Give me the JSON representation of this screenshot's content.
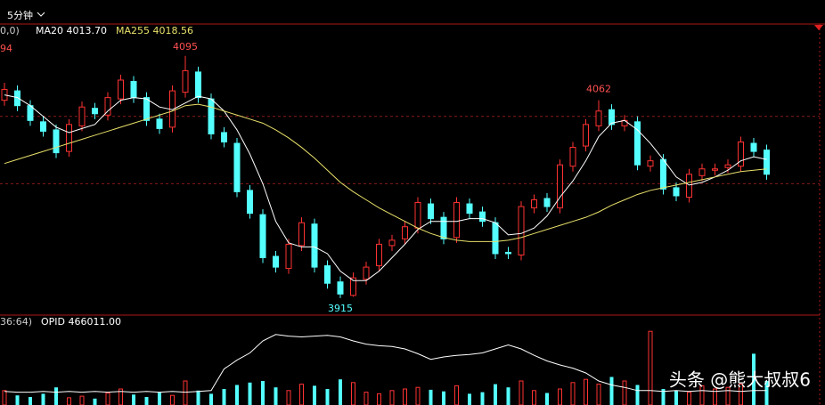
{
  "chart_data": {
    "type": "candlestick",
    "period": "5分钟",
    "left_header": "0,0)",
    "ma20_label": "MA20 4013.70",
    "ma255_label": "MA255 4018.56",
    "edge_label": "94",
    "lower_header": "36:64)",
    "opid_label": "OPID 466011.00",
    "watermark": "头条 @熊大叔叔6",
    "up_color": "#ff3232",
    "down_color": "#54ffff",
    "ylim": [
      3903,
      4118
    ],
    "gridlines": [
      4000,
      4050
    ],
    "open": [
      4062,
      4069,
      4058,
      4046,
      4040,
      4024,
      4043,
      4056,
      4051,
      4063,
      4076,
      4064,
      4048,
      4042,
      4068,
      4083,
      4063,
      4038,
      4030,
      3995,
      3977,
      3946,
      3937,
      3954,
      3970,
      3939,
      3927,
      3917,
      3929,
      3939,
      3954,
      3959,
      3967,
      3985,
      3975,
      3960,
      3985,
      3979,
      3971,
      3949,
      3947,
      3982,
      3989,
      3982,
      4013,
      4028,
      4043,
      4055,
      4043,
      4046,
      4013,
      4018,
      3997,
      3990,
      4006,
      4010,
      4012,
      4013,
      4030,
      4025
    ],
    "high": [
      4075,
      4073,
      4062,
      4050,
      4044,
      4048,
      4061,
      4060,
      4068,
      4081,
      4080,
      4068,
      4052,
      4073,
      4095,
      4087,
      4067,
      4042,
      4034,
      3999,
      3981,
      3950,
      3959,
      3975,
      3974,
      3943,
      3931,
      3934,
      3942,
      3959,
      3962,
      3972,
      3990,
      3989,
      3979,
      3990,
      3989,
      3983,
      3975,
      3953,
      3987,
      3992,
      3993,
      4018,
      4031,
      4048,
      4062,
      4059,
      4051,
      4050,
      4021,
      4022,
      4001,
      4011,
      4015,
      4015,
      4018,
      4035,
      4034,
      4029
    ],
    "low": [
      4058,
      4054,
      4043,
      4035,
      4019,
      4020,
      4039,
      4048,
      4047,
      4059,
      4060,
      4043,
      4037,
      4038,
      4064,
      4060,
      4033,
      4027,
      3990,
      3974,
      3941,
      3934,
      3933,
      3950,
      3934,
      3922,
      3915,
      3916,
      3925,
      3935,
      3950,
      3955,
      3963,
      3970,
      3955,
      3956,
      3974,
      3968,
      3944,
      3944,
      3943,
      3978,
      3979,
      3978,
      4009,
      4024,
      4039,
      4040,
      4039,
      4010,
      4009,
      3992,
      3987,
      3986,
      4002,
      4006,
      4008,
      4009,
      4020,
      4003
    ],
    "close": [
      4070,
      4058,
      4047,
      4039,
      4023,
      4044,
      4057,
      4052,
      4064,
      4077,
      4064,
      4047,
      4041,
      4069,
      4084,
      4064,
      4037,
      4031,
      3994,
      3978,
      3945,
      3938,
      3955,
      3971,
      3938,
      3926,
      3918,
      3930,
      3938,
      3955,
      3958,
      3968,
      3986,
      3974,
      3959,
      3986,
      3978,
      3972,
      3948,
      3948,
      3983,
      3988,
      3983,
      4014,
      4027,
      4044,
      4054,
      4044,
      4047,
      4014,
      4017,
      3996,
      3991,
      4007,
      4011,
      4011,
      4014,
      4031,
      4024,
      4007
    ],
    "ma_lines": [
      {
        "color": "#ffffff",
        "values": [
          4066,
          4064,
          4058,
          4050,
          4042,
          4038,
          4041,
          4044,
          4054,
          4062,
          4064,
          4063,
          4057,
          4055,
          4060,
          4065,
          4063,
          4054,
          4040,
          4022,
          4000,
          3972,
          3956,
          3953,
          3953,
          3948,
          3935,
          3928,
          3928,
          3935,
          3945,
          3955,
          3966,
          3972,
          3972,
          3972,
          3974,
          3974,
          3971,
          3962,
          3963,
          3967,
          3976,
          3990,
          4002,
          4017,
          4035,
          4045,
          4047,
          4040,
          4030,
          4018,
          4005,
          3999,
          4001,
          4005,
          4010,
          4017,
          4020,
          4018
        ]
      },
      {
        "color": "#e8e06a",
        "values": [
          4015,
          4018,
          4021,
          4024,
          4027,
          4030,
          4033,
          4036,
          4039,
          4042,
          4045,
          4048,
          4051,
          4054,
          4058,
          4059,
          4057,
          4054,
          4051,
          4048,
          4045,
          4040,
          4034,
          4027,
          4019,
          4010,
          4001,
          3994,
          3988,
          3982,
          3977,
          3972,
          3967,
          3963,
          3960,
          3958,
          3957,
          3957,
          3957,
          3958,
          3960,
          3963,
          3966,
          3969,
          3972,
          3975,
          3979,
          3984,
          3988,
          3992,
          3995,
          3997,
          3999,
          4001,
          4003,
          4005,
          4007,
          4009,
          4010,
          4011
        ]
      }
    ],
    "volume_lim": [
      0,
      100
    ],
    "volume": [
      18,
      12,
      10,
      14,
      22,
      9,
      11,
      8,
      15,
      20,
      13,
      10,
      16,
      12,
      30,
      18,
      14,
      20,
      25,
      28,
      30,
      22,
      18,
      26,
      24,
      20,
      32,
      28,
      16,
      14,
      18,
      20,
      22,
      19,
      17,
      24,
      14,
      16,
      26,
      22,
      30,
      18,
      15,
      20,
      28,
      32,
      26,
      35,
      30,
      25,
      92,
      20,
      18,
      16,
      24,
      20,
      22,
      26,
      64,
      30
    ],
    "opid": [
      17,
      16,
      16,
      17,
      16,
      17,
      16,
      17,
      16,
      17,
      16,
      17,
      16,
      17,
      16,
      17,
      18,
      45,
      56,
      65,
      80,
      88,
      86,
      85,
      86,
      87,
      85,
      80,
      76,
      74,
      73,
      70,
      64,
      57,
      60,
      62,
      63,
      65,
      70,
      75,
      70,
      62,
      55,
      50,
      46,
      40,
      30,
      25,
      22,
      18,
      18,
      17,
      18,
      17,
      18,
      17,
      18,
      17,
      18,
      18
    ]
  }
}
